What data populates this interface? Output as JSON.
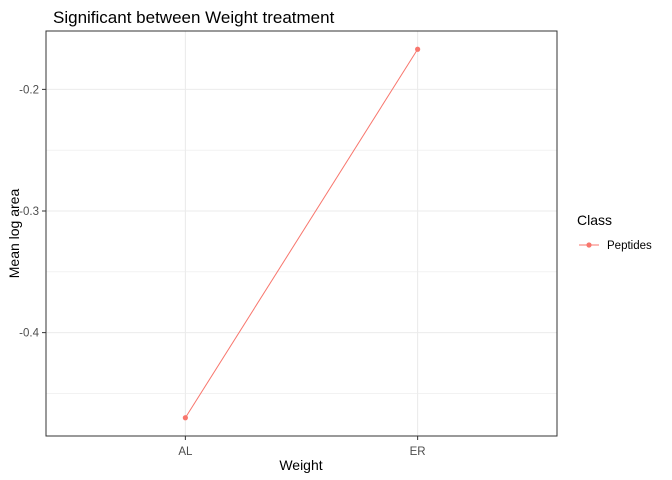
{
  "chart_data": {
    "type": "line",
    "title": "Significant between Weight treatment",
    "xlabel": "Weight",
    "ylabel": "Mean log area",
    "categories": [
      "AL",
      "ER"
    ],
    "series": [
      {
        "name": "Peptides",
        "values": [
          -0.47,
          -0.167
        ],
        "color": "#f8766d"
      }
    ],
    "ylim": [
      -0.485,
      -0.152
    ],
    "y_ticks": [
      -0.4,
      -0.3,
      -0.2
    ],
    "y_tick_labels": [
      "-0.4",
      "-0.3",
      "-0.2"
    ],
    "grid": true,
    "legend": {
      "title": "Class",
      "position": "right"
    },
    "theme": "bw"
  }
}
